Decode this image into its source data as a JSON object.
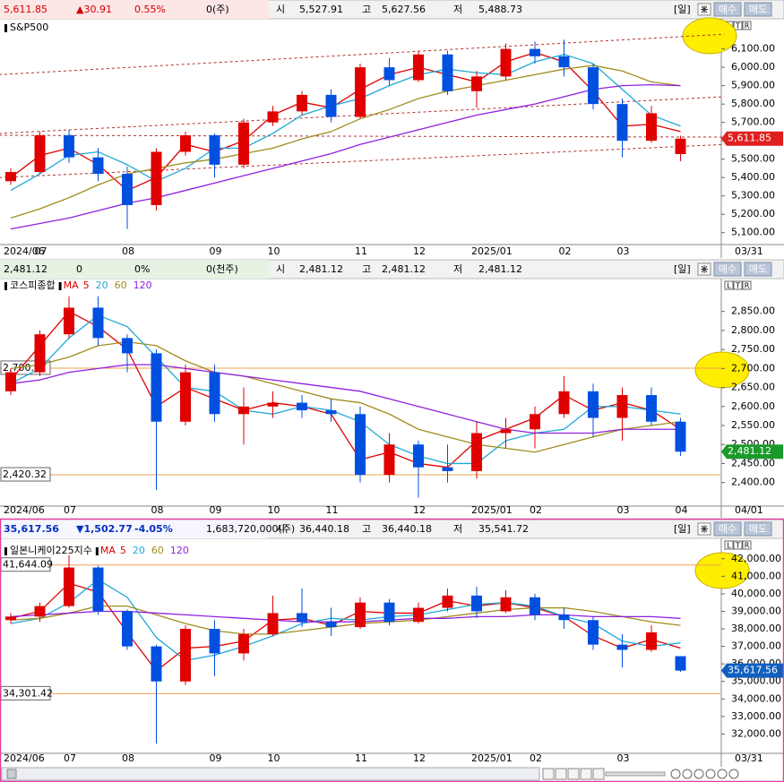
{
  "chart_data": [
    {
      "type": "candlestick",
      "title": "S&P500",
      "quote": {
        "price": "5,611.85",
        "change": "▲30.91",
        "pct": "0.55%",
        "volume": "0(주)",
        "open_label": "시",
        "open": "5,527.91",
        "high_label": "고",
        "high": "5,627.56",
        "low_label": "저",
        "low": "5,488.73"
      },
      "quote_color": "#d00000",
      "buttons": [
        "[일]",
        "매수",
        "매도"
      ],
      "corner_buttons": [
        "L",
        "T",
        "R"
      ],
      "categories": [
        "2024/06",
        "07",
        null,
        null,
        "08",
        null,
        null,
        "09",
        null,
        "10",
        null,
        null,
        "11",
        null,
        "12",
        null,
        "2025/01",
        null,
        null,
        "02",
        null,
        "03",
        null,
        null
      ],
      "end_label": "03/31",
      "open": [
        5380,
        5430,
        5630,
        5510,
        5420,
        5250,
        5540,
        5630,
        5470,
        5700,
        5760,
        5850,
        5730,
        6000,
        5930,
        6070,
        5870,
        5950,
        6100,
        6060,
        6000,
        5800,
        5600,
        5527.91
      ],
      "high": [
        5450,
        5650,
        5660,
        5560,
        5460,
        5560,
        5650,
        5640,
        5720,
        5790,
        5870,
        5880,
        6020,
        6050,
        6090,
        6090,
        5980,
        6130,
        6140,
        6150,
        6020,
        5830,
        5790,
        5627.56
      ],
      "low": [
        5360,
        5420,
        5480,
        5380,
        5120,
        5220,
        5520,
        5400,
        5450,
        5680,
        5740,
        5700,
        5720,
        5900,
        5920,
        5850,
        5780,
        5930,
        6020,
        5950,
        5770,
        5510,
        5590,
        5488.73
      ],
      "close": [
        5430,
        5630,
        5510,
        5420,
        5250,
        5540,
        5630,
        5470,
        5700,
        5760,
        5850,
        5730,
        6000,
        5930,
        6070,
        5870,
        5950,
        6100,
        6060,
        6000,
        5800,
        5600,
        5750,
        5611.85
      ],
      "series": [
        {
          "color": "#e00000",
          "values": [
            5400,
            5520,
            5560,
            5470,
            5330,
            5400,
            5580,
            5540,
            5600,
            5740,
            5810,
            5780,
            5880,
            5960,
            6000,
            5960,
            5920,
            6030,
            6080,
            6030,
            5870,
            5680,
            5690,
            5650
          ]
        },
        {
          "color": "#20a8d8",
          "values": [
            5330,
            5420,
            5520,
            5540,
            5470,
            5380,
            5450,
            5560,
            5560,
            5640,
            5740,
            5790,
            5830,
            5900,
            5960,
            5990,
            5970,
            5960,
            6030,
            6070,
            6020,
            5880,
            5740,
            5680
          ]
        },
        {
          "color": "#a08c20",
          "values": [
            5180,
            5230,
            5290,
            5360,
            5420,
            5450,
            5480,
            5500,
            5530,
            5560,
            5610,
            5650,
            5720,
            5770,
            5830,
            5870,
            5900,
            5930,
            5960,
            5990,
            6010,
            5980,
            5920,
            5900
          ]
        },
        {
          "color": "#9020e0",
          "values": [
            5120,
            5150,
            5180,
            5220,
            5260,
            5290,
            5330,
            5370,
            5410,
            5450,
            5490,
            5530,
            5580,
            5620,
            5660,
            5700,
            5740,
            5770,
            5800,
            5840,
            5880,
            5900,
            5905,
            5900
          ]
        }
      ],
      "trendlines": [
        {
          "from": [
            -0.4,
            5960
          ],
          "to": [
            24.5,
            6180
          ]
        },
        {
          "from": [
            -0.4,
            5640
          ],
          "to": [
            24.5,
            5840
          ]
        },
        {
          "from": [
            -0.4,
            5630
          ],
          "to": [
            24.5,
            5620
          ]
        },
        {
          "from": [
            -0.4,
            5400
          ],
          "to": [
            24.5,
            5580
          ]
        }
      ],
      "trend_color": "#b03030",
      "ylim": [
        5050,
        6220
      ],
      "yticks": [
        {
          "value": 5100,
          "label": "5,100.00"
        },
        {
          "value": 5200,
          "label": "5,200.00"
        },
        {
          "value": 5300,
          "label": "5,300.00"
        },
        {
          "value": 5400,
          "label": "5,400.00"
        },
        {
          "value": 5500,
          "label": "5,500.00"
        },
        {
          "value": 5600,
          "label": "5,600.00"
        },
        {
          "value": 5700,
          "label": "5,700.00"
        },
        {
          "value": 5800,
          "label": "5,800.00"
        },
        {
          "value": 5900,
          "label": "5,900.00"
        },
        {
          "value": 6000,
          "label": "6,000.00"
        },
        {
          "value": 6100,
          "label": "6,100.00"
        }
      ],
      "last": {
        "value": 5611.85,
        "label": "5,611.85"
      },
      "last_color": "#e02020",
      "up_color": "#e00000",
      "down_color": "#0050e0"
    },
    {
      "type": "candlestick",
      "title": "코스피종합",
      "quote": {
        "price": "2,481.12",
        "change": "0",
        "pct": "0%",
        "volume": "0(천주)",
        "open_label": "시",
        "open": "2,481.12",
        "high_label": "고",
        "high": "2,481.12",
        "low_label": "저",
        "low": "2,481.12"
      },
      "quote_color": "#000000",
      "buttons": [
        "[일]",
        "매수",
        "매도"
      ],
      "corner_buttons": [
        "L",
        "T",
        "R"
      ],
      "legend_prefix": "MA",
      "categories": [
        "2024/06",
        null,
        "07",
        null,
        null,
        "08",
        null,
        "09",
        null,
        "10",
        null,
        "11",
        null,
        null,
        "12",
        null,
        "2025/01",
        null,
        "02",
        null,
        null,
        "03",
        null,
        "04"
      ],
      "end_label": "04/01",
      "open": [
        2640,
        2690,
        2790,
        2860,
        2780,
        2740,
        2560,
        2690,
        2580,
        2600,
        2610,
        2590,
        2580,
        2420,
        2500,
        2440,
        2430,
        2530,
        2540,
        2580,
        2640,
        2570,
        2630,
        2560
      ],
      "high": [
        2700,
        2800,
        2890,
        2890,
        2790,
        2750,
        2710,
        2710,
        2650,
        2640,
        2630,
        2620,
        2600,
        2530,
        2510,
        2500,
        2560,
        2570,
        2600,
        2680,
        2660,
        2650,
        2650,
        2570
      ],
      "low": [
        2630,
        2680,
        2780,
        2760,
        2690,
        2380,
        2550,
        2560,
        2500,
        2570,
        2570,
        2560,
        2400,
        2400,
        2360,
        2400,
        2410,
        2490,
        2490,
        2570,
        2520,
        2510,
        2550,
        2470
      ],
      "close": [
        2690,
        2790,
        2860,
        2780,
        2740,
        2560,
        2690,
        2580,
        2600,
        2610,
        2590,
        2580,
        2420,
        2500,
        2440,
        2430,
        2530,
        2540,
        2580,
        2640,
        2570,
        2630,
        2560,
        2481.12
      ],
      "series": [
        {
          "name": "5",
          "color": "#e00000",
          "values": [
            2670,
            2760,
            2850,
            2810,
            2750,
            2600,
            2650,
            2620,
            2590,
            2610,
            2600,
            2580,
            2460,
            2480,
            2450,
            2440,
            2510,
            2540,
            2570,
            2630,
            2590,
            2610,
            2590,
            2540
          ]
        },
        {
          "name": "20",
          "color": "#20a8d8",
          "values": [
            2660,
            2700,
            2780,
            2840,
            2810,
            2730,
            2650,
            2640,
            2590,
            2580,
            2600,
            2590,
            2560,
            2500,
            2470,
            2450,
            2450,
            2510,
            2530,
            2540,
            2600,
            2600,
            2590,
            2580
          ]
        },
        {
          "name": "60",
          "color": "#a08c20",
          "values": [
            2700,
            2710,
            2730,
            2760,
            2770,
            2760,
            2720,
            2690,
            2680,
            2660,
            2640,
            2620,
            2610,
            2580,
            2540,
            2520,
            2500,
            2490,
            2480,
            2500,
            2520,
            2540,
            2550,
            2560
          ]
        },
        {
          "name": "120",
          "color": "#9020e0",
          "values": [
            2660,
            2670,
            2690,
            2700,
            2710,
            2710,
            2700,
            2690,
            2680,
            2670,
            2660,
            2650,
            2640,
            2620,
            2600,
            2580,
            2560,
            2540,
            2530,
            2530,
            2530,
            2540,
            2540,
            2540
          ]
        }
      ],
      "hlines": [
        {
          "value": 2700.97,
          "label": "2,700.97"
        },
        {
          "value": 2420.32,
          "label": "2,420.32"
        }
      ],
      "hline_color": "#f0a050",
      "ylim": [
        2345,
        2920
      ],
      "yticks": [
        {
          "value": 2400,
          "label": "2,400.00"
        },
        {
          "value": 2450,
          "label": "2,450.00"
        },
        {
          "value": 2500,
          "label": "2,500.00"
        },
        {
          "value": 2550,
          "label": "2,550.00"
        },
        {
          "value": 2600,
          "label": "2,600.00"
        },
        {
          "value": 2650,
          "label": "2,650.00"
        },
        {
          "value": 2700,
          "label": "2,700.00"
        },
        {
          "value": 2750,
          "label": "2,750.00"
        },
        {
          "value": 2800,
          "label": "2,800.00"
        },
        {
          "value": 2850,
          "label": "2,850.00"
        }
      ],
      "last": {
        "value": 2481.12,
        "label": "2,481.12"
      },
      "last_color": "#1a9a2a",
      "up_color": "#e00000",
      "down_color": "#0050e0"
    },
    {
      "type": "candlestick",
      "title": "일본니케이225지수",
      "quote": {
        "price": "35,617.56",
        "change": "▼1,502.77",
        "pct": "-4.05%",
        "volume": "1,683,720,000(주)",
        "open_label": "시",
        "open": "36,440.18",
        "high_label": "고",
        "high": "36,440.18",
        "low_label": "저",
        "low": "35,541.72"
      },
      "quote_color": "#0030c0",
      "buttons": [
        "[일]",
        "매수",
        "매도"
      ],
      "corner_buttons": [
        "L",
        "T",
        "R"
      ],
      "legend_prefix": "MA",
      "categories": [
        "2024/06",
        null,
        "07",
        null,
        "08",
        null,
        null,
        "09",
        null,
        "10",
        null,
        null,
        "11",
        null,
        "12",
        null,
        "2025/01",
        null,
        "02",
        null,
        null,
        "03",
        null,
        null
      ],
      "end_label": "03/31",
      "open": [
        38500,
        38700,
        39300,
        41500,
        39000,
        37000,
        35000,
        38000,
        36600,
        37700,
        38900,
        38400,
        38100,
        39500,
        38400,
        39200,
        39900,
        39000,
        39800,
        38800,
        38500,
        37100,
        36800,
        36440.18
      ],
      "high": [
        38900,
        39500,
        42200,
        41600,
        39100,
        37100,
        38200,
        38500,
        38000,
        39900,
        40300,
        39200,
        39800,
        39700,
        39500,
        40300,
        40400,
        40200,
        40000,
        39200,
        38700,
        37700,
        38200,
        36440.18
      ],
      "low": [
        38300,
        38400,
        39200,
        38800,
        36800,
        31460,
        34800,
        35300,
        36200,
        37600,
        38100,
        37600,
        38000,
        38200,
        38300,
        39000,
        38600,
        38900,
        38500,
        38000,
        36800,
        35800,
        36700,
        35541.72
      ],
      "close": [
        38700,
        39300,
        41500,
        39000,
        37000,
        35000,
        38000,
        36600,
        37700,
        38900,
        38400,
        38100,
        39500,
        38400,
        39200,
        39900,
        39000,
        39800,
        38800,
        38500,
        37100,
        36800,
        37800,
        35617.56
      ],
      "series": [
        {
          "name": "5",
          "color": "#e00000",
          "values": [
            38600,
            39000,
            40600,
            40100,
            37800,
            35600,
            36900,
            37000,
            37300,
            38500,
            38600,
            38200,
            39000,
            38900,
            38900,
            39600,
            39300,
            39500,
            39200,
            38700,
            37600,
            36900,
            37400,
            36900
          ]
        },
        {
          "name": "20",
          "color": "#20a8d8",
          "values": [
            38300,
            38600,
            39500,
            40800,
            39800,
            37500,
            36200,
            36500,
            37000,
            37600,
            38300,
            38600,
            38500,
            38700,
            38800,
            39100,
            39400,
            39500,
            39300,
            38700,
            38300,
            37300,
            37000,
            37200
          ]
        },
        {
          "name": "60",
          "color": "#a08c20",
          "values": [
            38500,
            38600,
            38900,
            39300,
            39300,
            38800,
            38300,
            37900,
            37700,
            37700,
            37900,
            38100,
            38300,
            38400,
            38500,
            38700,
            38900,
            39100,
            39200,
            39200,
            39000,
            38700,
            38400,
            38200
          ]
        },
        {
          "name": "120",
          "color": "#9020e0",
          "values": [
            38700,
            38800,
            38900,
            39000,
            39000,
            38900,
            38800,
            38700,
            38600,
            38500,
            38400,
            38400,
            38400,
            38500,
            38600,
            38600,
            38700,
            38700,
            38800,
            38800,
            38700,
            38700,
            38700,
            38600
          ]
        }
      ],
      "hlines": [
        {
          "value": 41644.09,
          "label": "41,644.09"
        },
        {
          "value": 34301.42,
          "label": "34,301.42"
        }
      ],
      "hline_color": "#f0a050",
      "ylim": [
        31050,
        42500
      ],
      "yticks": [
        {
          "value": 32000,
          "label": "32,000.00"
        },
        {
          "value": 33000,
          "label": "33,000.00"
        },
        {
          "value": 34000,
          "label": "34,000.00"
        },
        {
          "value": 35000,
          "label": "35,000.00"
        },
        {
          "value": 36000,
          "label": "36,000.00"
        },
        {
          "value": 37000,
          "label": "37,000.00"
        },
        {
          "value": 38000,
          "label": "38,000.00"
        },
        {
          "value": 39000,
          "label": "39,000.00"
        },
        {
          "value": 40000,
          "label": "40,000.00"
        },
        {
          "value": 41000,
          "label": "41,000.00"
        },
        {
          "value": 42000,
          "label": "42,000.00"
        }
      ],
      "last": {
        "value": 35617.56,
        "label": "35,617.56"
      },
      "last_color": "#1060c0",
      "up_color": "#e00000",
      "down_color": "#0050e0"
    }
  ]
}
